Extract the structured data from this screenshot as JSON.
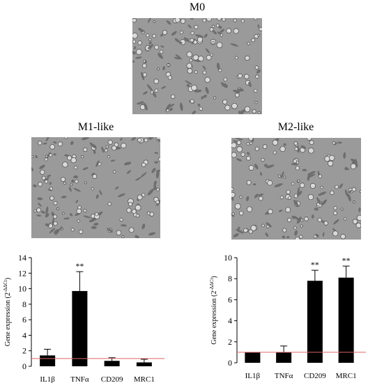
{
  "panels": {
    "m0": {
      "label": "M0"
    },
    "m1": {
      "label": "M1-like"
    },
    "m2": {
      "label": "M2-like"
    }
  },
  "colors": {
    "bar": "#000000",
    "baseline": "#e06666",
    "cell_background": "#9a9a9a"
  },
  "chart_data": [
    {
      "type": "bar",
      "categories": [
        "IL1β",
        "TNFα",
        "CD209",
        "MRC1"
      ],
      "values": [
        1.4,
        9.7,
        0.7,
        0.5
      ],
      "errors": [
        0.8,
        2.5,
        0.4,
        0.4
      ],
      "annotations": [
        "",
        "**",
        "",
        ""
      ],
      "ylabel": "Gene expression (2",
      "ylabel_superscript": "-ΔΔCt",
      "ylabel_close": ")",
      "ylim": [
        0,
        14
      ],
      "yticks": [
        0,
        2,
        4,
        6,
        8,
        10,
        12,
        14
      ],
      "reference_line": 1
    },
    {
      "type": "bar",
      "categories": [
        "IL1β",
        "TNFα",
        "CD209",
        "MRC1"
      ],
      "values": [
        1.0,
        1.0,
        7.8,
        8.1
      ],
      "errors": [
        0.0,
        0.6,
        1.0,
        1.1
      ],
      "annotations": [
        "",
        "",
        "**",
        "**"
      ],
      "ylabel": "Gene expression (2",
      "ylabel_superscript": "-ΔΔCt",
      "ylabel_close": ")",
      "ylim": [
        0,
        10
      ],
      "yticks": [
        0,
        2,
        4,
        6,
        8,
        10
      ],
      "reference_line": 1
    }
  ]
}
